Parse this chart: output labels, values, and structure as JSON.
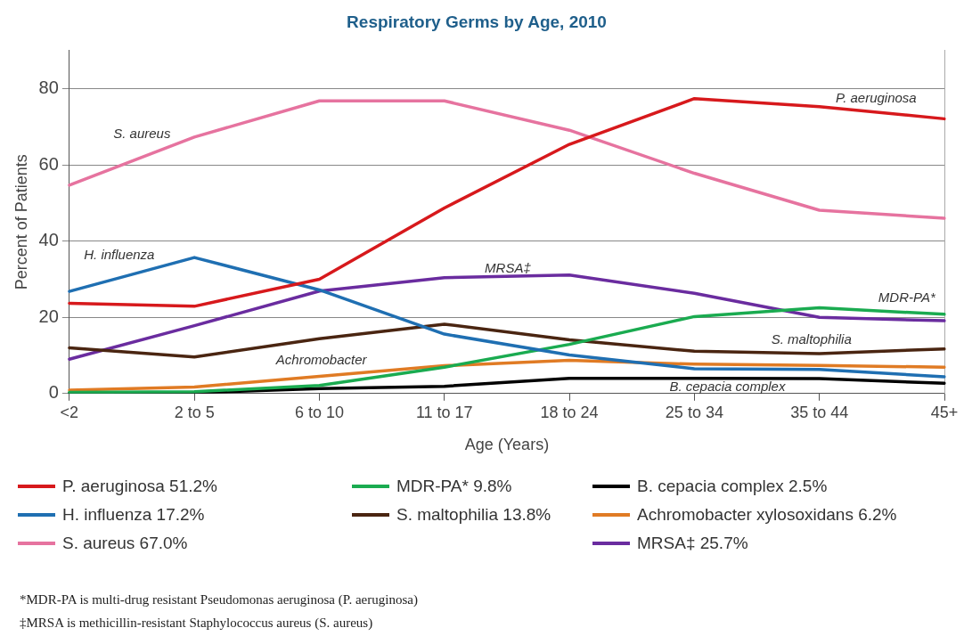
{
  "chart_data": {
    "type": "line",
    "title": "Respiratory Germs by Age, 2010",
    "xlabel": "Age (Years)",
    "ylabel": "Percent of Patients",
    "categories": [
      "<2",
      "2 to 5",
      "6 to 10",
      "11 to 17",
      "18 to 24",
      "25 to 34",
      "35 to 44",
      "45+"
    ],
    "ylim": [
      0,
      90
    ],
    "yticks": [
      0,
      20,
      40,
      60,
      80
    ],
    "grid": "y",
    "legend": "bottom",
    "marker": "none",
    "line_style": "solid",
    "series": [
      {
        "name": "P. aeruginosa 51.2%",
        "color": "#d7191c",
        "values": [
          23.7,
          22.9,
          30,
          48.7,
          65.4,
          77.4,
          75.3,
          72.1
        ]
      },
      {
        "name": "H. influenza 17.2%",
        "color": "#1f6fb2",
        "values": [
          26.8,
          35.7,
          27.2,
          15.6,
          10.1,
          6.5,
          6.3,
          4.4
        ]
      },
      {
        "name": "S. aureus 67.0%",
        "color": "#e6739f",
        "values": [
          54.7,
          67.3,
          76.8,
          76.8,
          69.1,
          57.8,
          48.1,
          46
        ]
      },
      {
        "name": "MDR-PA* 9.8%",
        "color": "#1aab50",
        "values": [
          0.3,
          0.5,
          2.1,
          6.9,
          12.9,
          20.2,
          22.5,
          20.8
        ]
      },
      {
        "name": "S. maltophilia 13.8%",
        "color": "#4a2511",
        "values": [
          12,
          9.6,
          14.4,
          18.2,
          14.1,
          11.1,
          10.5,
          11.7
        ]
      },
      {
        "name": "B. cepacia complex 2.5%",
        "color": "#000000",
        "values": [
          0.1,
          0.2,
          1.3,
          1.9,
          4,
          4,
          3.9,
          2.7
        ]
      },
      {
        "name": "Achromobacter xylosoxidans 6.2%",
        "color": "#e07b24",
        "values": [
          0.9,
          1.7,
          4.5,
          7.3,
          8.7,
          7.7,
          7.4,
          6.9
        ]
      },
      {
        "name": "MRSA‡ 25.7%",
        "color": "#6a2c9f",
        "values": [
          9,
          17.8,
          26.9,
          30.4,
          31.1,
          26.3,
          20,
          19.1
        ]
      }
    ],
    "annotations": [
      "P. aeruginosa",
      "S. aureus",
      "H. influenza",
      "MRSA‡",
      "MDR-PA*",
      "S. maltophilia",
      "Achromobacter",
      "B. cepacia complex",
      "*MDR-PA is multi-drug resistant Pseudomonas aeruginosa (P. aeruginosa)",
      "‡MRSA is methicillin-resistant Staphylococcus aureus (S. aureus)"
    ]
  }
}
